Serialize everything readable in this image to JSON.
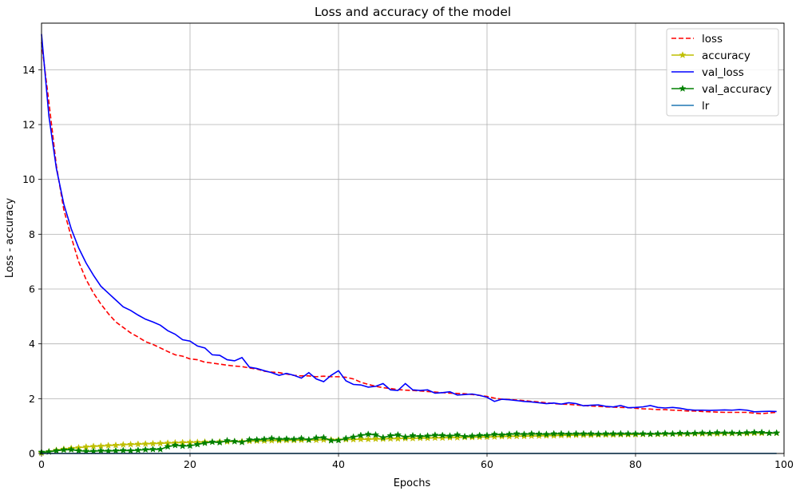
{
  "chart_data": {
    "type": "line",
    "title": "Loss and accuracy of the model",
    "xlabel": "Epochs",
    "ylabel": "Loss - accuracy",
    "xlim": [
      0,
      100
    ],
    "ylim": [
      0,
      15.7
    ],
    "xticks": [
      0,
      20,
      40,
      60,
      80,
      100
    ],
    "yticks": [
      0,
      2,
      4,
      6,
      8,
      10,
      12,
      14
    ],
    "grid": true,
    "legend_position": "top-right",
    "x": [
      0,
      1,
      2,
      3,
      4,
      5,
      6,
      7,
      8,
      9,
      10,
      11,
      12,
      13,
      14,
      15,
      16,
      17,
      18,
      19,
      20,
      21,
      22,
      23,
      24,
      25,
      26,
      27,
      28,
      29,
      30,
      31,
      32,
      33,
      34,
      35,
      36,
      37,
      38,
      39,
      40,
      41,
      42,
      43,
      44,
      45,
      46,
      47,
      48,
      49,
      50,
      51,
      52,
      53,
      54,
      55,
      56,
      57,
      58,
      59,
      60,
      61,
      62,
      63,
      64,
      65,
      66,
      67,
      68,
      69,
      70,
      71,
      72,
      73,
      74,
      75,
      76,
      77,
      78,
      79,
      80,
      81,
      82,
      83,
      84,
      85,
      86,
      87,
      88,
      89,
      90,
      91,
      92,
      93,
      94,
      95,
      96,
      97,
      98,
      99
    ],
    "series": [
      {
        "name": "loss",
        "color": "#ff0000",
        "style": "dashed",
        "marker": "none",
        "values": [
          15.0,
          12.8,
          10.5,
          8.9,
          7.9,
          7.0,
          6.35,
          5.85,
          5.45,
          5.1,
          4.8,
          4.6,
          4.4,
          4.25,
          4.08,
          3.98,
          3.85,
          3.72,
          3.6,
          3.55,
          3.45,
          3.42,
          3.33,
          3.3,
          3.26,
          3.22,
          3.19,
          3.17,
          3.12,
          3.08,
          3.0,
          2.97,
          2.95,
          2.9,
          2.85,
          2.83,
          2.83,
          2.8,
          2.82,
          2.8,
          2.8,
          2.78,
          2.72,
          2.6,
          2.52,
          2.45,
          2.4,
          2.37,
          2.33,
          2.31,
          2.3,
          2.28,
          2.26,
          2.24,
          2.22,
          2.2,
          2.19,
          2.18,
          2.15,
          2.12,
          2.08,
          2.02,
          1.98,
          1.97,
          1.95,
          1.93,
          1.9,
          1.88,
          1.85,
          1.82,
          1.8,
          1.79,
          1.77,
          1.75,
          1.73,
          1.72,
          1.7,
          1.69,
          1.68,
          1.67,
          1.65,
          1.63,
          1.62,
          1.6,
          1.6,
          1.58,
          1.57,
          1.55,
          1.55,
          1.53,
          1.52,
          1.51,
          1.5,
          1.5,
          1.5,
          1.5,
          1.47,
          1.45,
          1.48,
          1.5
        ]
      },
      {
        "name": "accuracy",
        "color": "#bfbf00",
        "style": "solid",
        "marker": "star",
        "values": [
          0.02,
          0.07,
          0.12,
          0.16,
          0.19,
          0.21,
          0.24,
          0.26,
          0.27,
          0.29,
          0.3,
          0.32,
          0.33,
          0.34,
          0.35,
          0.36,
          0.37,
          0.38,
          0.39,
          0.4,
          0.41,
          0.41,
          0.42,
          0.42,
          0.43,
          0.43,
          0.44,
          0.44,
          0.45,
          0.46,
          0.46,
          0.47,
          0.47,
          0.48,
          0.48,
          0.49,
          0.49,
          0.49,
          0.5,
          0.5,
          0.5,
          0.51,
          0.51,
          0.52,
          0.52,
          0.53,
          0.53,
          0.54,
          0.54,
          0.55,
          0.55,
          0.56,
          0.56,
          0.57,
          0.57,
          0.58,
          0.58,
          0.59,
          0.59,
          0.6,
          0.6,
          0.61,
          0.62,
          0.62,
          0.63,
          0.63,
          0.64,
          0.64,
          0.65,
          0.65,
          0.66,
          0.66,
          0.67,
          0.67,
          0.67,
          0.68,
          0.68,
          0.68,
          0.69,
          0.69,
          0.69,
          0.7,
          0.7,
          0.7,
          0.71,
          0.71,
          0.71,
          0.71,
          0.72,
          0.72,
          0.72,
          0.72,
          0.73,
          0.73,
          0.73,
          0.73,
          0.74,
          0.74,
          0.74,
          0.74
        ]
      },
      {
        "name": "val_loss",
        "color": "#0000ff",
        "style": "solid",
        "marker": "none",
        "values": [
          15.3,
          12.3,
          10.4,
          9.1,
          8.2,
          7.5,
          6.95,
          6.5,
          6.1,
          5.85,
          5.6,
          5.35,
          5.22,
          5.05,
          4.9,
          4.8,
          4.68,
          4.48,
          4.35,
          4.15,
          4.1,
          3.92,
          3.85,
          3.6,
          3.58,
          3.42,
          3.38,
          3.5,
          3.15,
          3.1,
          3.02,
          2.95,
          2.85,
          2.92,
          2.85,
          2.75,
          2.95,
          2.72,
          2.62,
          2.85,
          3.02,
          2.65,
          2.52,
          2.5,
          2.42,
          2.45,
          2.55,
          2.32,
          2.3,
          2.55,
          2.32,
          2.3,
          2.32,
          2.2,
          2.22,
          2.25,
          2.13,
          2.15,
          2.17,
          2.12,
          2.05,
          1.9,
          1.98,
          1.96,
          1.93,
          1.9,
          1.88,
          1.85,
          1.82,
          1.84,
          1.8,
          1.85,
          1.82,
          1.74,
          1.76,
          1.77,
          1.72,
          1.7,
          1.75,
          1.67,
          1.68,
          1.7,
          1.75,
          1.68,
          1.66,
          1.68,
          1.65,
          1.6,
          1.58,
          1.58,
          1.57,
          1.58,
          1.59,
          1.58,
          1.6,
          1.58,
          1.52,
          1.53,
          1.54,
          1.53
        ]
      },
      {
        "name": "val_accuracy",
        "color": "#008000",
        "style": "solid",
        "marker": "star",
        "values": [
          0.05,
          0.06,
          0.1,
          0.13,
          0.14,
          0.1,
          0.08,
          0.08,
          0.1,
          0.09,
          0.1,
          0.11,
          0.1,
          0.12,
          0.14,
          0.15,
          0.15,
          0.25,
          0.3,
          0.27,
          0.28,
          0.33,
          0.38,
          0.42,
          0.4,
          0.47,
          0.44,
          0.41,
          0.5,
          0.5,
          0.52,
          0.55,
          0.52,
          0.53,
          0.52,
          0.55,
          0.5,
          0.57,
          0.58,
          0.47,
          0.48,
          0.55,
          0.6,
          0.66,
          0.7,
          0.68,
          0.58,
          0.65,
          0.68,
          0.6,
          0.65,
          0.62,
          0.64,
          0.67,
          0.66,
          0.64,
          0.68,
          0.62,
          0.64,
          0.66,
          0.66,
          0.7,
          0.68,
          0.7,
          0.72,
          0.7,
          0.72,
          0.71,
          0.7,
          0.72,
          0.72,
          0.71,
          0.72,
          0.72,
          0.72,
          0.71,
          0.72,
          0.72,
          0.72,
          0.72,
          0.72,
          0.72,
          0.71,
          0.72,
          0.73,
          0.72,
          0.74,
          0.73,
          0.74,
          0.75,
          0.74,
          0.76,
          0.75,
          0.75,
          0.74,
          0.76,
          0.77,
          0.77,
          0.74,
          0.75
        ]
      },
      {
        "name": "lr",
        "color": "#1f77b4",
        "style": "solid",
        "marker": "none",
        "values": [
          0.001,
          0.001,
          0.001,
          0.001,
          0.001,
          0.001,
          0.001,
          0.001,
          0.001,
          0.001,
          0.001,
          0.001,
          0.001,
          0.001,
          0.001,
          0.001,
          0.001,
          0.001,
          0.001,
          0.001,
          0.001,
          0.001,
          0.001,
          0.001,
          0.001,
          0.001,
          0.001,
          0.001,
          0.001,
          0.001,
          0.001,
          0.001,
          0.001,
          0.001,
          0.001,
          0.001,
          0.001,
          0.001,
          0.001,
          0.001,
          0.001,
          0.001,
          0.001,
          0.001,
          0.001,
          0.001,
          0.001,
          0.001,
          0.001,
          0.001,
          0.001,
          0.001,
          0.001,
          0.001,
          0.001,
          0.001,
          0.001,
          0.001,
          0.001,
          0.001,
          0.001,
          0.001,
          0.001,
          0.001,
          0.001,
          0.001,
          0.001,
          0.001,
          0.001,
          0.001,
          0.001,
          0.001,
          0.001,
          0.001,
          0.001,
          0.001,
          0.001,
          0.001,
          0.001,
          0.001,
          0.001,
          0.001,
          0.001,
          0.001,
          0.001,
          0.001,
          0.001,
          0.001,
          0.001,
          0.001,
          0.001,
          0.001,
          0.001,
          0.001,
          0.001,
          0.001,
          0.001,
          0.001,
          0.001,
          0.001
        ]
      }
    ]
  }
}
